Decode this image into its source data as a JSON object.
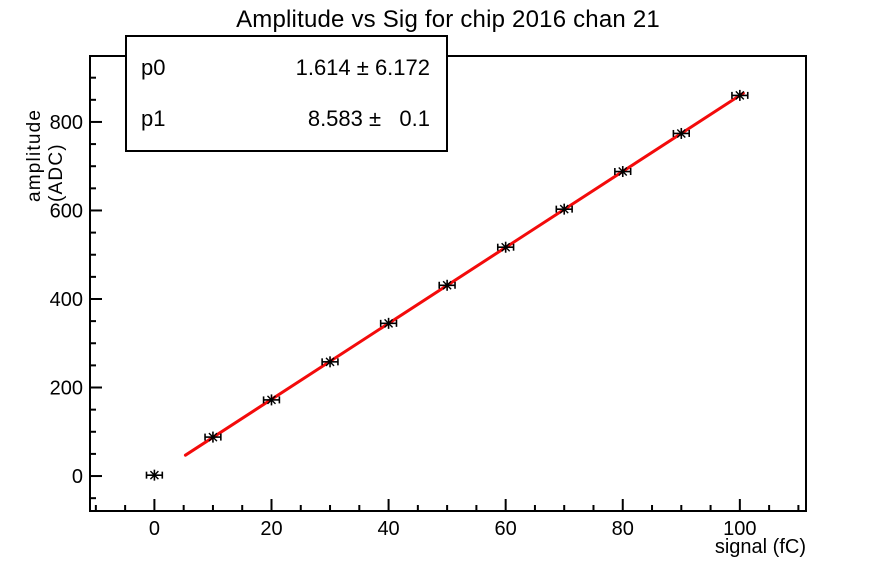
{
  "title": "Amplitude vs Sig for chip 2016 chan 21",
  "stats_box": {
    "rows": [
      {
        "label": "p0",
        "value": "1.614 ± 6.172"
      },
      {
        "label": "p1",
        "value": "8.583 ±   0.1"
      }
    ]
  },
  "chart_data": {
    "type": "scatter",
    "title": "Amplitude vs Sig for chip 2016 chan 21",
    "xlabel": "signal (fC)",
    "ylabel": "amplitude (ADC)",
    "x": [
      0,
      10,
      20,
      30,
      40,
      50,
      60,
      70,
      80,
      90,
      100
    ],
    "y": [
      2,
      88,
      172,
      258,
      345,
      431,
      517,
      603,
      688,
      774,
      860
    ],
    "x_error": 1.35,
    "xlim": [
      -11,
      111.3
    ],
    "ylim": [
      -79,
      949
    ],
    "x_major_ticks": [
      0,
      20,
      40,
      60,
      80,
      100
    ],
    "x_minor_step": 5,
    "y_major_ticks": [
      0,
      200,
      400,
      600,
      800
    ],
    "y_minor_step": 50,
    "grid": false,
    "legend_position": "stats-box-top-left",
    "marker": "asterisk-with-x-error-bars",
    "marker_color": "#000000",
    "axis_color": "#000000",
    "background_color": "#ffffff",
    "fit": {
      "p0": 1.614,
      "p0_err": 6.172,
      "p1": 8.583,
      "p1_err": 0.1,
      "line_range": [
        5.3,
        100.6
      ],
      "line_color": "#f30b0b"
    }
  }
}
